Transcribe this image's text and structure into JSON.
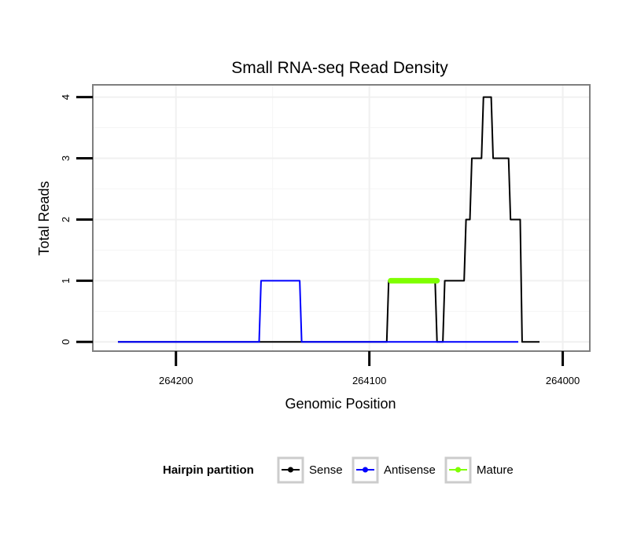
{
  "chart_data": {
    "type": "line",
    "title": "Small RNA-seq Read Density",
    "xlabel": "Genomic Position",
    "ylabel": "Total Reads",
    "x_reversed": true,
    "xlim": [
      264243,
      263986
    ],
    "ylim": [
      -0.15,
      4.2
    ],
    "x_ticks": [
      264200,
      264100,
      264000
    ],
    "x_tick_labels": [
      "264200",
      "264100",
      "264000"
    ],
    "y_ticks": [
      0,
      1,
      2,
      3,
      4
    ],
    "y_tick_labels": [
      "0",
      "1",
      "2",
      "3",
      "4"
    ],
    "grid": true,
    "legend": {
      "title": "Hairpin partition",
      "position": "bottom",
      "entries": [
        "Sense",
        "Antisense",
        "Mature"
      ]
    },
    "series": [
      {
        "name": "Sense",
        "color": "#000000",
        "x": [
          264230,
          264091,
          264090,
          264066,
          264065,
          264062,
          264061,
          264051,
          264050,
          264048,
          264047,
          264042,
          264041,
          264037,
          264036,
          264028,
          264027,
          264022,
          264021,
          264020,
          264019,
          264012
        ],
        "y": [
          0,
          0,
          1,
          1,
          0,
          0,
          1,
          1,
          2,
          2,
          3,
          3,
          4,
          4,
          3,
          3,
          2,
          2,
          0,
          0,
          0,
          0
        ]
      },
      {
        "name": "Antisense",
        "color": "#0000ff",
        "x": [
          264230,
          264157,
          264156,
          264136,
          264135,
          264023
        ],
        "y": [
          0,
          0,
          1,
          1,
          0,
          0
        ]
      },
      {
        "name": "Mature",
        "color": "#7fff00",
        "x": [
          264089,
          264065
        ],
        "y": [
          1,
          1
        ]
      }
    ]
  }
}
